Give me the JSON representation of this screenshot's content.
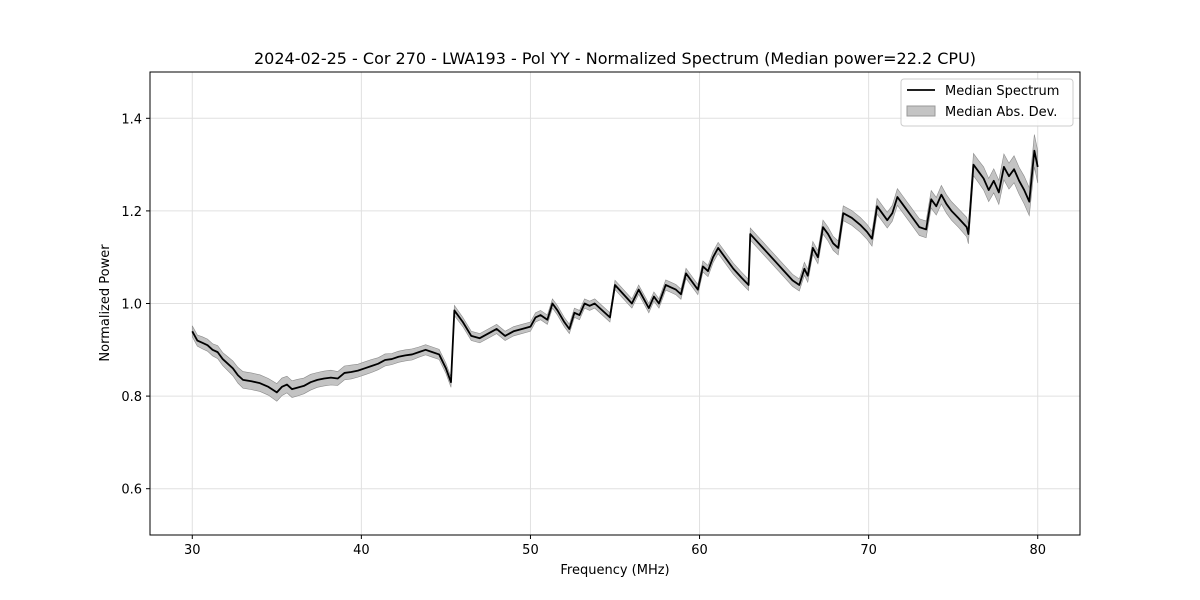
{
  "chart_data": {
    "type": "line",
    "title": "2024-02-25 - Cor 270 - LWA193 - Pol YY - Normalized Spectrum (Median power=22.2 CPU)",
    "xlabel": "Frequency (MHz)",
    "ylabel": "Normalized Power",
    "xlim": [
      27.5,
      82.5
    ],
    "ylim": [
      0.5,
      1.5
    ],
    "xticks": [
      30,
      40,
      50,
      60,
      70,
      80
    ],
    "yticks": [
      0.6,
      0.8,
      1.0,
      1.2,
      1.4
    ],
    "xtick_labels": [
      "30",
      "40",
      "50",
      "60",
      "70",
      "80"
    ],
    "ytick_labels": [
      "0.6",
      "0.8",
      "1.0",
      "1.2",
      "1.4"
    ],
    "grid": true,
    "legend_position": "top-right",
    "legend": [
      "Median Spectrum",
      "Median Abs. Dev."
    ],
    "colors": {
      "line": "#000000",
      "band": "#b8b8b8",
      "band_edge": "#8c8c8c",
      "grid": "#e0e0e0"
    },
    "series": [
      {
        "name": "Median Spectrum",
        "x": [
          30.0,
          30.3,
          30.6,
          30.9,
          31.2,
          31.5,
          31.8,
          32.1,
          32.4,
          32.7,
          33.0,
          33.5,
          34.0,
          34.5,
          35.0,
          35.3,
          35.6,
          35.9,
          36.2,
          36.6,
          37.0,
          37.4,
          37.8,
          38.2,
          38.6,
          39.0,
          39.4,
          39.8,
          40.2,
          40.6,
          41.0,
          41.4,
          41.8,
          42.2,
          42.6,
          43.0,
          43.4,
          43.8,
          44.2,
          44.6,
          45.0,
          45.3,
          45.5,
          46.0,
          46.5,
          47.0,
          47.5,
          48.0,
          48.5,
          49.0,
          49.5,
          50.0,
          50.3,
          50.6,
          51.0,
          51.3,
          51.6,
          52.0,
          52.3,
          52.6,
          52.9,
          53.2,
          53.5,
          53.8,
          54.1,
          54.4,
          54.7,
          55.0,
          55.5,
          56.0,
          56.4,
          56.7,
          57.0,
          57.3,
          57.6,
          58.0,
          58.3,
          58.6,
          58.9,
          59.2,
          59.5,
          59.9,
          60.2,
          60.5,
          60.8,
          61.1,
          61.4,
          61.7,
          62.0,
          62.5,
          62.9,
          63.0,
          63.5,
          64.0,
          64.5,
          65.0,
          65.5,
          65.9,
          66.2,
          66.4,
          66.7,
          67.0,
          67.3,
          67.6,
          67.9,
          68.2,
          68.5,
          69.0,
          69.5,
          69.9,
          70.2,
          70.5,
          70.8,
          71.1,
          71.4,
          71.7,
          72.0,
          72.5,
          73.0,
          73.4,
          73.7,
          74.0,
          74.3,
          74.6,
          74.9,
          75.3,
          75.8,
          75.9,
          76.2,
          76.5,
          76.8,
          77.1,
          77.4,
          77.7,
          78.0,
          78.3,
          78.6,
          78.9,
          79.2,
          79.5,
          79.8,
          80.0
        ],
        "y": [
          0.94,
          0.92,
          0.915,
          0.91,
          0.9,
          0.895,
          0.88,
          0.87,
          0.86,
          0.845,
          0.835,
          0.832,
          0.828,
          0.82,
          0.808,
          0.82,
          0.825,
          0.815,
          0.818,
          0.822,
          0.83,
          0.835,
          0.838,
          0.84,
          0.838,
          0.85,
          0.852,
          0.855,
          0.86,
          0.865,
          0.87,
          0.878,
          0.88,
          0.885,
          0.888,
          0.89,
          0.895,
          0.9,
          0.895,
          0.89,
          0.86,
          0.83,
          0.985,
          0.96,
          0.93,
          0.925,
          0.935,
          0.945,
          0.93,
          0.94,
          0.945,
          0.95,
          0.97,
          0.975,
          0.965,
          1.0,
          0.985,
          0.96,
          0.945,
          0.98,
          0.975,
          1.0,
          0.995,
          1.0,
          0.99,
          0.98,
          0.97,
          1.04,
          1.02,
          1.0,
          1.03,
          1.01,
          0.99,
          1.015,
          1.0,
          1.04,
          1.035,
          1.03,
          1.02,
          1.065,
          1.05,
          1.03,
          1.08,
          1.07,
          1.1,
          1.12,
          1.105,
          1.09,
          1.075,
          1.055,
          1.04,
          1.15,
          1.13,
          1.11,
          1.09,
          1.07,
          1.05,
          1.04,
          1.075,
          1.06,
          1.12,
          1.1,
          1.165,
          1.15,
          1.13,
          1.12,
          1.195,
          1.185,
          1.17,
          1.155,
          1.14,
          1.21,
          1.195,
          1.18,
          1.195,
          1.23,
          1.215,
          1.19,
          1.165,
          1.16,
          1.225,
          1.21,
          1.235,
          1.215,
          1.2,
          1.185,
          1.165,
          1.15,
          1.3,
          1.285,
          1.27,
          1.245,
          1.265,
          1.24,
          1.295,
          1.275,
          1.29,
          1.265,
          1.245,
          1.22,
          1.33,
          1.295
        ]
      },
      {
        "name": "Median Abs. Dev.",
        "band_halfwidth": [
          0.012,
          0.012,
          0.013,
          0.013,
          0.013,
          0.014,
          0.014,
          0.015,
          0.016,
          0.017,
          0.018,
          0.018,
          0.018,
          0.018,
          0.019,
          0.019,
          0.018,
          0.018,
          0.018,
          0.017,
          0.017,
          0.016,
          0.016,
          0.016,
          0.015,
          0.015,
          0.015,
          0.014,
          0.014,
          0.014,
          0.013,
          0.013,
          0.012,
          0.012,
          0.012,
          0.012,
          0.011,
          0.011,
          0.011,
          0.011,
          0.011,
          0.011,
          0.011,
          0.01,
          0.01,
          0.01,
          0.01,
          0.01,
          0.01,
          0.01,
          0.01,
          0.01,
          0.01,
          0.01,
          0.01,
          0.01,
          0.01,
          0.01,
          0.01,
          0.01,
          0.01,
          0.01,
          0.01,
          0.01,
          0.01,
          0.01,
          0.01,
          0.01,
          0.01,
          0.01,
          0.01,
          0.01,
          0.01,
          0.01,
          0.01,
          0.011,
          0.011,
          0.011,
          0.011,
          0.011,
          0.011,
          0.011,
          0.012,
          0.012,
          0.012,
          0.012,
          0.012,
          0.012,
          0.012,
          0.012,
          0.012,
          0.013,
          0.013,
          0.013,
          0.013,
          0.013,
          0.013,
          0.013,
          0.014,
          0.014,
          0.014,
          0.014,
          0.015,
          0.015,
          0.015,
          0.015,
          0.016,
          0.016,
          0.016,
          0.016,
          0.016,
          0.017,
          0.017,
          0.017,
          0.017,
          0.018,
          0.018,
          0.018,
          0.018,
          0.018,
          0.019,
          0.019,
          0.02,
          0.02,
          0.02,
          0.02,
          0.021,
          0.021,
          0.024,
          0.024,
          0.025,
          0.025,
          0.026,
          0.026,
          0.028,
          0.028,
          0.029,
          0.029,
          0.03,
          0.03,
          0.035,
          0.035
        ]
      }
    ]
  }
}
